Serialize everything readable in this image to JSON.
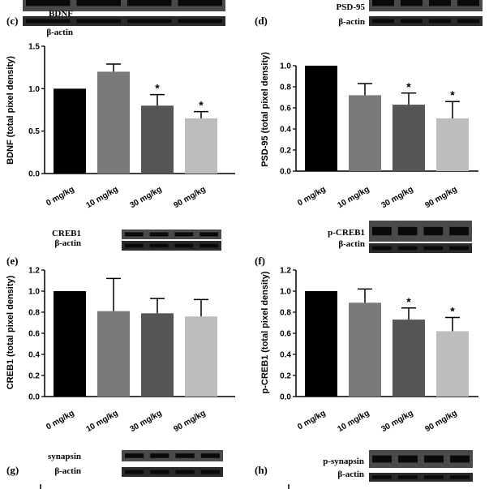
{
  "bar_colors": [
    "#000000",
    "#7a7a7a",
    "#555555",
    "#bdbdbd"
  ],
  "chart_data": [
    {
      "panel": "(c)",
      "type": "bar",
      "blot_labels": [
        "BDNF",
        "β-actin"
      ],
      "categories": [
        "0 mg/kg",
        "10 mg/kg",
        "30 mg/kg",
        "90 mg/kg"
      ],
      "values": [
        1.0,
        1.2,
        0.8,
        0.65
      ],
      "errors": [
        0.0,
        0.09,
        0.13,
        0.08
      ],
      "significant": [
        false,
        false,
        true,
        true
      ],
      "ylabel": "BDNF (total pixel density)",
      "ylim": [
        0,
        1.5
      ],
      "yticks": [
        "0.0",
        "0.5",
        "1.0",
        "1.5"
      ]
    },
    {
      "panel": "(d)",
      "type": "bar",
      "blot_labels": [
        "PSD-95",
        "β-actin"
      ],
      "categories": [
        "0 mg/kg",
        "10 mg/kg",
        "30 mg/kg",
        "90 mg/kg"
      ],
      "values": [
        1.0,
        0.72,
        0.63,
        0.5
      ],
      "errors": [
        0.0,
        0.11,
        0.11,
        0.16
      ],
      "significant": [
        false,
        false,
        true,
        true
      ],
      "ylabel": "PSD-95 (total pixel density)",
      "ylim": [
        0,
        1.0
      ],
      "yticks": [
        "0.0",
        "0.2",
        "0.4",
        "0.6",
        "0.8",
        "1.0"
      ]
    },
    {
      "panel": "(e)",
      "type": "bar",
      "blot_labels": [
        "CREB1",
        "β-actin"
      ],
      "categories": [
        "0 mg/kg",
        "10 mg/kg",
        "30 mg/kg",
        "90 mg/kg"
      ],
      "values": [
        1.0,
        0.81,
        0.79,
        0.76
      ],
      "errors": [
        0.0,
        0.31,
        0.14,
        0.16
      ],
      "significant": [
        false,
        false,
        false,
        false
      ],
      "ylabel": "CREB1 (total pixel density)",
      "ylim": [
        0,
        1.2
      ],
      "yticks": [
        "0.0",
        "0.2",
        "0.4",
        "0.6",
        "0.8",
        "1.0",
        "1.2"
      ]
    },
    {
      "panel": "(f)",
      "type": "bar",
      "blot_labels": [
        "p-CREB1",
        "β-actin"
      ],
      "categories": [
        "0 mg/kg",
        "10 mg/kg",
        "30 mg/kg",
        "90 mg/kg"
      ],
      "values": [
        1.0,
        0.89,
        0.73,
        0.62
      ],
      "errors": [
        0.0,
        0.13,
        0.11,
        0.13
      ],
      "significant": [
        false,
        false,
        true,
        true
      ],
      "ylabel": "p-CREB1 (total pixel density)",
      "ylim": [
        0,
        1.2
      ],
      "yticks": [
        "0.0",
        "0.2",
        "0.4",
        "0.6",
        "0.8",
        "1.0",
        "1.2"
      ]
    },
    {
      "panel": "(g)",
      "type": "bar",
      "blot_labels": [
        "synapsin",
        "β-actin"
      ],
      "categories": [],
      "values": [],
      "ylabel": "",
      "yticks": []
    },
    {
      "panel": "(h)",
      "type": "bar",
      "blot_labels": [
        "p-synapsin",
        "β-actin"
      ],
      "categories": [],
      "values": [],
      "ylabel": "",
      "yticks": []
    }
  ],
  "sig_marker": "*"
}
